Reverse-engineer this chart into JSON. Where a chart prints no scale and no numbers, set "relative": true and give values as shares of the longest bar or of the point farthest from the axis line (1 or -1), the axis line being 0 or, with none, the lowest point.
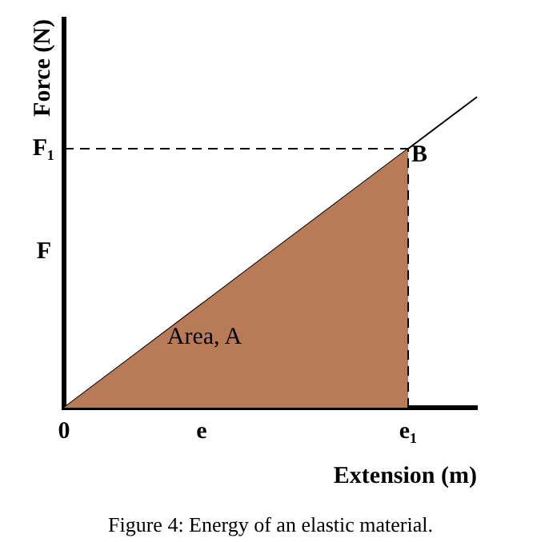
{
  "chart_data": {
    "type": "area",
    "relative": true,
    "xlabel": "Extension (m)",
    "ylabel": "Force (N)",
    "categories": [
      "0",
      null,
      "e",
      null,
      null,
      "e₁",
      null
    ],
    "series": [
      {
        "color": "#b97a57",
        "values": [
          0,
          0.1667,
          0.3333,
          0.5,
          0.6667,
          0.8333,
          null
        ]
      },
      {
        "type": "line",
        "color": "#000000",
        "values": [
          0,
          0.1667,
          0.3333,
          0.5,
          0.6667,
          0.8333,
          1
        ]
      }
    ],
    "ref_lines": [
      {
        "axis": "y",
        "value": 0.8333,
        "label": "F₁",
        "line_style": "dashed",
        "color": "#000000"
      },
      {
        "axis": "x",
        "value": "e₁",
        "line_style": "dashed",
        "color": "#000000"
      }
    ],
    "annotations": [
      "F",
      {
        "text": "B",
        "x": "e₁",
        "y": 0.8333
      },
      "Area, A",
      "Figure 4: Energy of an elastic material."
    ],
    "legend": false,
    "grid": false,
    "marker": "none"
  }
}
